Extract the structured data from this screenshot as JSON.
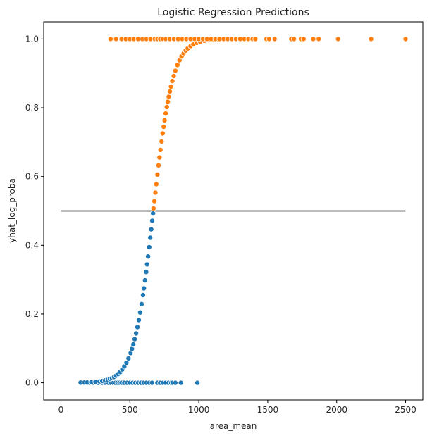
{
  "chart_data": {
    "type": "scatter",
    "title": "Logistic Regression Predictions",
    "xlabel": "area_mean",
    "ylabel": "yhat_log_proba",
    "xlim": [
      -125,
      2625
    ],
    "ylim": [
      -0.05,
      1.05
    ],
    "x_ticks": [
      0,
      500,
      1000,
      1500,
      2000,
      2500
    ],
    "x_tick_labels": [
      "0",
      "500",
      "1000",
      "1500",
      "2000",
      "2500"
    ],
    "y_ticks": [
      0.0,
      0.2,
      0.4,
      0.6,
      0.8,
      1.0
    ],
    "y_tick_labels": [
      "0.0",
      "0.2",
      "0.4",
      "0.6",
      "0.8",
      "1.0"
    ],
    "grid": false,
    "legend": "none",
    "colors": {
      "class0": "#1f77b4",
      "class1": "#ff7f0e",
      "threshold": "#000000"
    },
    "threshold_line": {
      "x": [
        0,
        2500
      ],
      "y": [
        0.5,
        0.5
      ]
    },
    "logistic_fit": {
      "midpoint": 670,
      "scale": 70
    },
    "series": [
      {
        "color": "class0",
        "x": [
          143,
          170,
          180,
          200,
          230,
          270,
          300,
          320,
          345,
          360,
          380,
          395,
          410,
          425,
          440,
          460,
          480,
          500,
          520,
          540,
          560,
          580,
          600,
          620,
          640,
          660
        ],
        "y": [
          0,
          0,
          0,
          0,
          0,
          0,
          0,
          0,
          0,
          0,
          0,
          0,
          0,
          0,
          0,
          0,
          0,
          0,
          0,
          0,
          0,
          0,
          0,
          0,
          0,
          0
        ],
        "role": "observed"
      },
      {
        "color": "class0",
        "x": [
          700,
          720,
          740,
          760,
          780,
          800,
          810,
          830,
          870,
          990
        ],
        "y": [
          0,
          0,
          0,
          0,
          0,
          0,
          0,
          0,
          0,
          0
        ],
        "role": "observed"
      },
      {
        "color": "class0",
        "x": [
          143,
          170,
          190,
          220,
          250,
          280,
          300,
          320,
          340,
          355,
          370,
          385,
          400,
          415,
          430,
          445,
          460,
          475,
          490,
          505,
          515,
          525,
          535,
          545,
          555,
          565,
          575,
          585,
          595,
          602,
          610,
          618,
          625,
          632,
          640,
          648,
          655,
          662,
          668
        ],
        "role": "predicted"
      },
      {
        "color": "class1",
        "x": [
          672,
          678,
          685,
          692,
          700,
          708,
          715,
          722,
          730,
          738,
          745,
          752,
          760,
          768,
          775,
          782,
          790,
          798,
          808,
          818,
          830,
          845,
          860,
          875,
          890,
          905,
          920,
          940,
          960,
          985,
          1010,
          1040,
          1070,
          1100,
          1140,
          1180
        ],
        "role": "predicted"
      },
      {
        "color": "class1",
        "x": [
          360,
          400,
          440,
          470,
          500,
          530,
          560,
          590,
          620,
          650,
          680,
          700,
          720,
          740,
          760,
          790,
          820,
          850,
          880,
          910,
          940,
          970,
          1000,
          1030,
          1060,
          1090,
          1120,
          1150,
          1180,
          1210,
          1240,
          1270,
          1300,
          1330,
          1360,
          1390,
          1410,
          1490,
          1510,
          1550,
          1670,
          1690,
          1740,
          1760,
          1830,
          1870,
          2010,
          2250,
          2500
        ],
        "y": [
          1,
          1,
          1,
          1,
          1,
          1,
          1,
          1,
          1,
          1,
          1,
          1,
          1,
          1,
          1,
          1,
          1,
          1,
          1,
          1,
          1,
          1,
          1,
          1,
          1,
          1,
          1,
          1,
          1,
          1,
          1,
          1,
          1,
          1,
          1,
          1,
          1,
          1,
          1,
          1,
          1,
          1,
          1,
          1,
          1,
          1,
          1,
          1,
          1
        ],
        "role": "observed"
      }
    ]
  }
}
